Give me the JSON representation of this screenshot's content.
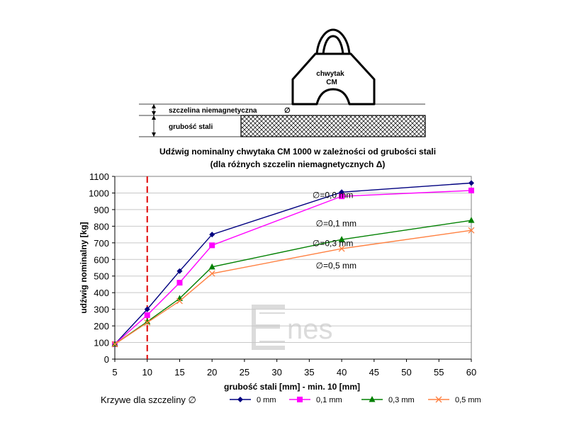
{
  "diagram": {
    "gripper_label_line1": "chwytak",
    "gripper_label_line2": "CM",
    "gap_label": "szczelina niemagnetyczna",
    "gap_symbol": "∅",
    "thickness_label": "grubość stali"
  },
  "chart_data": {
    "type": "line",
    "title_line1": "Udźwig nominalny chwytaka CM 1000 w zależności od grubości stali",
    "title_line2": "(dla różnych szczelin niemagnetycznych Δ)",
    "xlabel": "grubość stali [mm] - min. 10 [mm]",
    "ylabel": "udźwig nominalny [kg]",
    "xlim": [
      5,
      60
    ],
    "ylim": [
      0,
      1100
    ],
    "xticks": [
      "5",
      "10",
      "15",
      "20",
      "25",
      "30",
      "35",
      "40",
      "45",
      "50",
      "55",
      "60"
    ],
    "yticks": [
      "0",
      "100",
      "200",
      "300",
      "400",
      "500",
      "600",
      "700",
      "800",
      "900",
      "1000",
      "1100"
    ],
    "min_thickness_line": 10,
    "grid": "horizontal",
    "series": [
      {
        "name": "0 mm",
        "color": "#000080",
        "marker": "diamond",
        "x": [
          5,
          10,
          15,
          20,
          40,
          60
        ],
        "y": [
          90,
          300,
          530,
          750,
          1005,
          1060
        ]
      },
      {
        "name": "0,1 mm",
        "color": "#ff00ff",
        "marker": "square",
        "x": [
          5,
          10,
          15,
          20,
          40,
          60
        ],
        "y": [
          90,
          265,
          460,
          685,
          980,
          1015
        ]
      },
      {
        "name": "0,3 mm",
        "color": "#008000",
        "marker": "triangle",
        "x": [
          5,
          10,
          15,
          20,
          40,
          60
        ],
        "y": [
          90,
          225,
          365,
          555,
          720,
          835
        ]
      },
      {
        "name": "0,5 mm",
        "color": "#ff8040",
        "marker": "x",
        "x": [
          5,
          10,
          15,
          20,
          40,
          60
        ],
        "y": [
          90,
          220,
          350,
          515,
          665,
          775
        ]
      }
    ],
    "annotations": [
      {
        "text": "∅=0,0 mm",
        "x": 35.5,
        "y": 970
      },
      {
        "text": "∅=0,1 mm",
        "x": 36,
        "y": 800
      },
      {
        "text": "∅=0,3 mm",
        "x": 35.5,
        "y": 680
      },
      {
        "text": "∅=0,5 mm",
        "x": 36,
        "y": 545
      }
    ],
    "legend_title": "Krzywe dla szczeliny ∅",
    "legend_position": "bottom",
    "watermark": "nes"
  }
}
